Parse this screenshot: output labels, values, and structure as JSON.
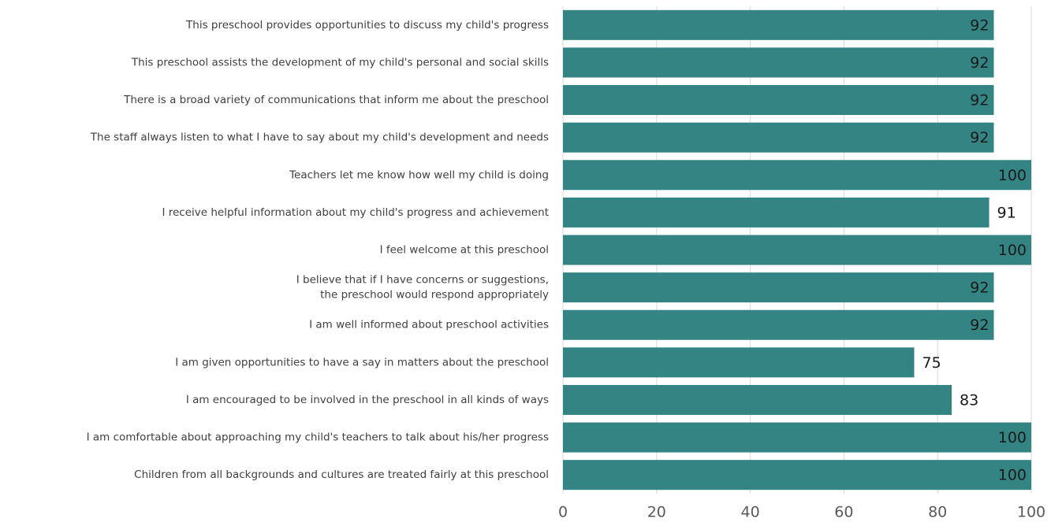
{
  "chart_data": {
    "type": "barh",
    "categories": [
      "This preschool provides opportunities to discuss my child's progress",
      "This preschool assists the development of my child's personal and social skills",
      "There is a broad variety of communications that inform me about the preschool",
      "The staff always listen to what I have to say about my child's development and needs",
      "Teachers let me know how well my child is doing",
      "I receive helpful information about my child's progress and achievement",
      "I feel welcome at this preschool",
      "I believe that if I have concerns or suggestions,\nthe preschool would respond appropriately",
      "I am well informed about preschool activities",
      "I am given opportunities to have a say in matters about the preschool",
      "I am encouraged to be involved in the preschool in all kinds of ways",
      "I am comfortable about approaching my child's teachers to talk about his/her progress",
      "Children from all backgrounds and cultures are treated fairly at this preschool"
    ],
    "values": [
      92,
      92,
      92,
      92,
      100,
      91,
      100,
      92,
      92,
      75,
      83,
      100,
      100
    ],
    "color": "#338483",
    "xlim": [
      0,
      100
    ],
    "xticks": [
      0,
      20,
      40,
      60,
      80,
      100
    ],
    "grid": true
  }
}
